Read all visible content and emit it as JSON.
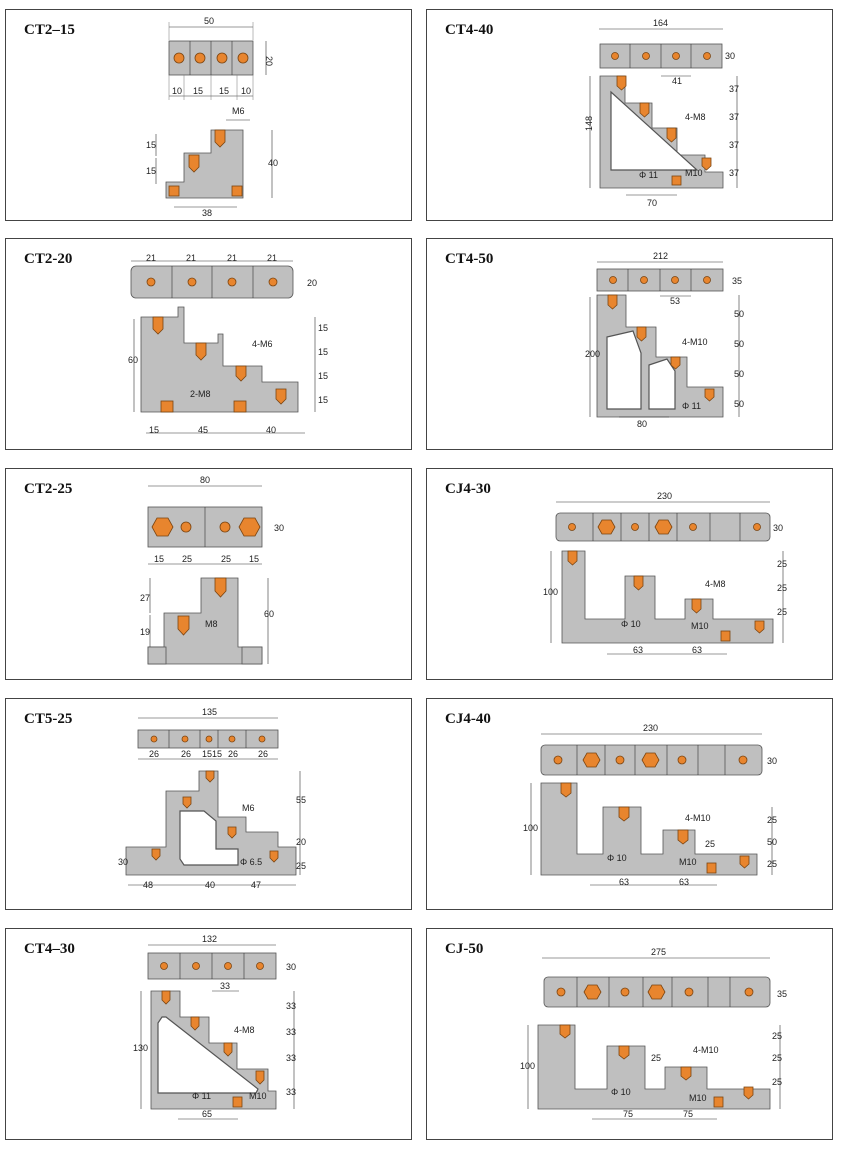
{
  "colors": {
    "block": "#bfbfbf",
    "copper_bolt": "#e8852e",
    "border": "#444444"
  },
  "panels": {
    "ct2_15": {
      "title": "CT2–15",
      "dims": [
        "50",
        "20",
        "10",
        "15",
        "15",
        "10",
        "M6",
        "15",
        "15",
        "40",
        "38"
      ]
    },
    "ct4_40": {
      "title": "CT4-40",
      "dims": [
        "164",
        "30",
        "41",
        "148",
        "37",
        "37",
        "37",
        "37",
        "4-M8",
        "Φ 11",
        "M10",
        "70"
      ]
    },
    "ct2_20": {
      "title": "CT2-20",
      "dims": [
        "21",
        "21",
        "21",
        "21",
        "20",
        "60",
        "4-M6",
        "2-M8",
        "15",
        "15",
        "15",
        "15",
        "15",
        "45",
        "40"
      ]
    },
    "ct4_50": {
      "title": "CT4-50",
      "dims": [
        "212",
        "35",
        "53",
        "200",
        "50",
        "50",
        "50",
        "50",
        "4-M10",
        "Φ 11",
        "80"
      ]
    },
    "ct2_25": {
      "title": "CT2-25",
      "dims": [
        "80",
        "30",
        "15",
        "25",
        "25",
        "15",
        "27",
        "19",
        "M8",
        "60"
      ]
    },
    "cj4_30": {
      "title": "CJ4-30",
      "dims": [
        "230",
        "30",
        "100",
        "25",
        "25",
        "25",
        "4-M8",
        "Φ 10",
        "M10",
        "63",
        "63"
      ]
    },
    "ct5_25": {
      "title": "CT5-25",
      "dims": [
        "135",
        "26",
        "26",
        "15",
        "15",
        "26",
        "26",
        "55",
        "M6",
        "20",
        "30",
        "Φ 6.5",
        "25",
        "48",
        "40",
        "47"
      ]
    },
    "cj4_40": {
      "title": "CJ4-40",
      "dims": [
        "230",
        "30",
        "100",
        "25",
        "4-M10",
        "25",
        "50",
        "Φ 10",
        "M10",
        "25",
        "63",
        "63"
      ]
    },
    "ct4_30": {
      "title": "CT4–30",
      "dims": [
        "132",
        "30",
        "33",
        "130",
        "33",
        "4-M8",
        "33",
        "Φ 11",
        "M10",
        "33",
        "33",
        "65"
      ]
    },
    "cj_50": {
      "title": "CJ-50",
      "dims": [
        "275",
        "35",
        "100",
        "25",
        "4-M10",
        "25",
        "25",
        "25",
        "Φ 10",
        "M10",
        "75",
        "75"
      ]
    }
  }
}
